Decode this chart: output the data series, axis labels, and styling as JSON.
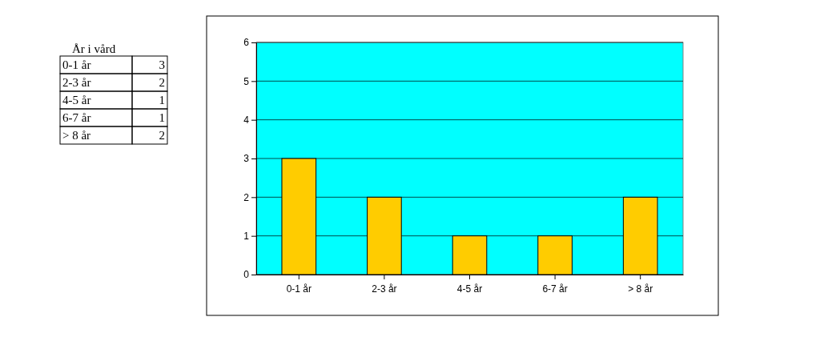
{
  "chart_data": [
    {
      "type": "other",
      "title": "År i vård",
      "categories": [
        "0-1 år",
        "2-3 år",
        "4-5 år",
        "6-7 år",
        "> 8 år"
      ],
      "values": [
        3,
        2,
        1,
        1,
        2
      ],
      "data_labels": true
    },
    {
      "type": "bar",
      "categories": [
        "0-1 år",
        "2-3 år",
        "4-5 år",
        "6-7 år",
        "> 8 år"
      ],
      "values": [
        3,
        2,
        1,
        1,
        2
      ],
      "color": "#ffcc00",
      "ylim": [
        0,
        6
      ],
      "yticks": [
        0,
        1,
        2,
        3,
        4,
        5,
        6
      ],
      "grid": "y"
    }
  ]
}
